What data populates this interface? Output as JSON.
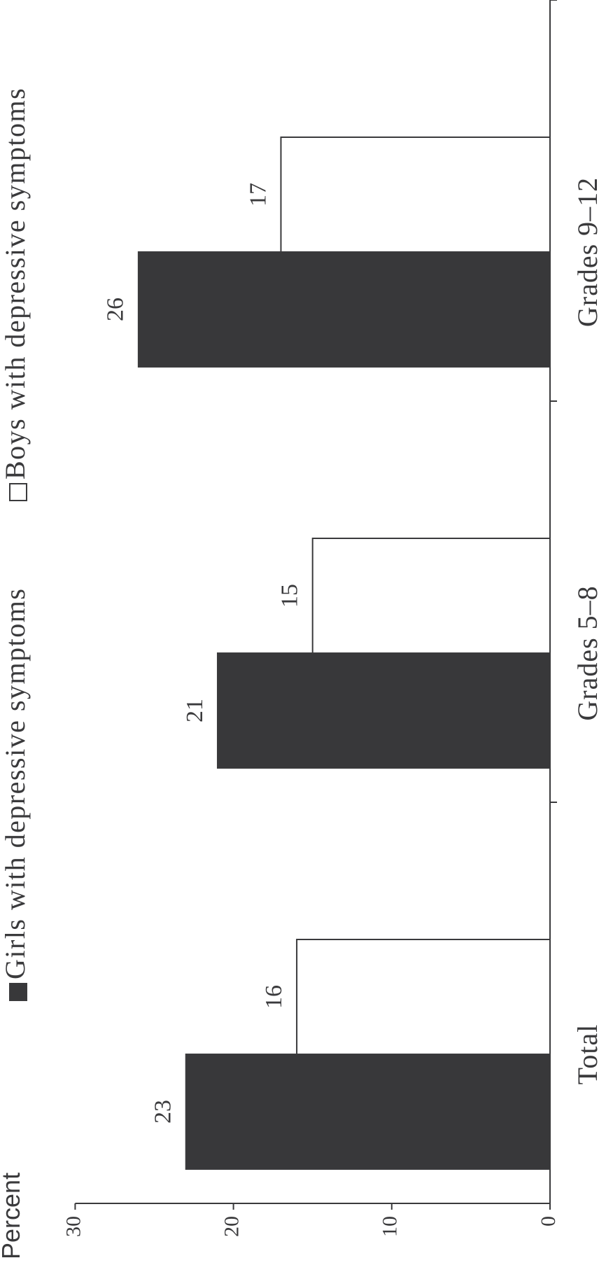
{
  "chart_data": {
    "type": "bar",
    "orientation": "horizontal",
    "ylabel": "Percent",
    "categories": [
      "Total",
      "Grades 5–8",
      "Grades 9–12"
    ],
    "series": [
      {
        "name": "Girls with depressive symptoms",
        "values": [
          23,
          21,
          26
        ],
        "labels": [
          "23",
          "21",
          "26"
        ],
        "color": "#38383a"
      },
      {
        "name": "Boys with depressive symptoms",
        "values": [
          16,
          15,
          17
        ],
        "labels": [
          "16",
          "15",
          "17"
        ],
        "color": "#ffffff"
      }
    ],
    "ylim": [
      0,
      30
    ],
    "ticks": [
      0,
      10,
      20,
      30
    ],
    "tick_labels": [
      "0",
      "10",
      "20",
      "30"
    ],
    "grid": false,
    "legend_position": "top"
  }
}
